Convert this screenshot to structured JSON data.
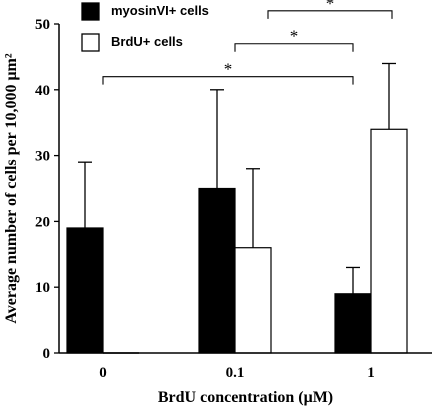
{
  "chart_data": {
    "type": "bar",
    "categories": [
      "0",
      "0.1",
      "1"
    ],
    "series": [
      {
        "name": "myosinVI+ cells",
        "values": [
          19,
          25,
          9
        ],
        "error_upper": [
          29,
          40,
          13
        ],
        "color": "#000000"
      },
      {
        "name": "BrdU+ cells",
        "values": [
          0,
          16,
          34
        ],
        "error_upper": [
          0,
          28,
          44
        ],
        "color": "#ffffff"
      }
    ],
    "xlabel": "BrdU concentration (μM)",
    "ylabel": "Average number of cells per 10,000 μm²",
    "ylim": [
      0,
      50
    ],
    "yticks": [
      "0",
      "10",
      "20",
      "30",
      "40",
      "50"
    ],
    "grid": false,
    "legend_position": "top-left",
    "significance": [
      {
        "label": "*",
        "from_category": "0",
        "to_category": "1",
        "y": 42
      },
      {
        "label": "*",
        "from_category": "0.1",
        "to_category": "1",
        "y": 47
      },
      {
        "label": "*",
        "from_category": "0.1",
        "to_category": "1",
        "y": 52
      }
    ]
  }
}
